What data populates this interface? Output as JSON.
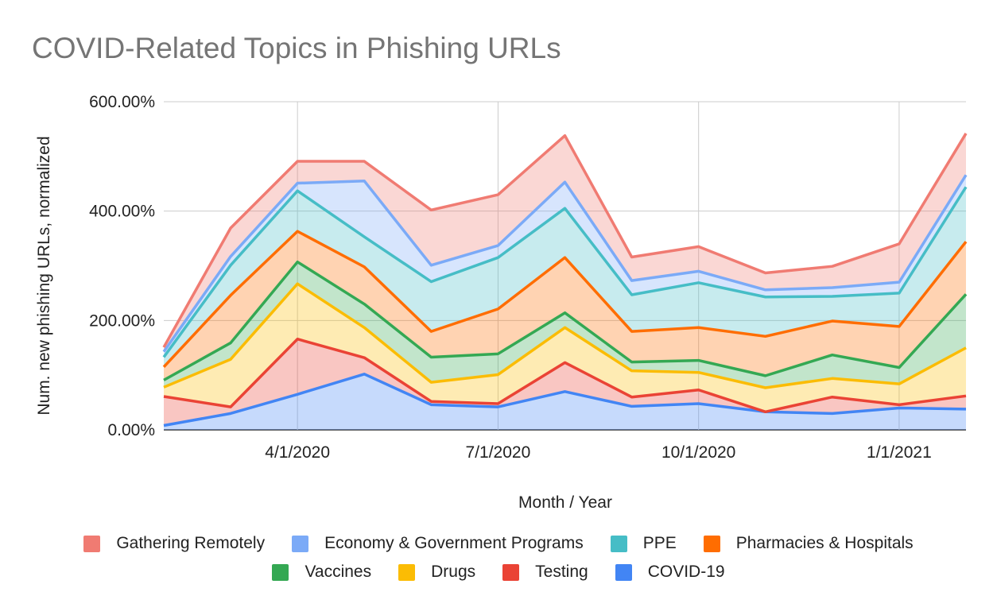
{
  "chart_data": {
    "type": "area",
    "stacked": true,
    "title": "COVID-Related Topics in Phishing URLs",
    "xlabel": "Month / Year",
    "ylabel": "Num. new phishing URLs, normalized",
    "x": [
      "2/1/2020",
      "3/1/2020",
      "4/1/2020",
      "5/1/2020",
      "6/1/2020",
      "7/1/2020",
      "8/1/2020",
      "9/1/2020",
      "10/1/2020",
      "11/1/2020",
      "12/1/2020",
      "1/1/2021",
      "2/1/2021"
    ],
    "x_tick_labels": [
      "4/1/2020",
      "7/1/2020",
      "10/1/2020",
      "1/1/2021"
    ],
    "ylim": [
      0,
      600
    ],
    "y_ticks": [
      0,
      200,
      400,
      600
    ],
    "y_tick_labels": [
      "0.00%",
      "200.00%",
      "400.00%",
      "600.00%"
    ],
    "grid": true,
    "legend_position": "bottom",
    "series": [
      {
        "name": "COVID-19",
        "color": "#4285f4",
        "values": [
          8,
          30,
          65,
          102,
          46,
          42,
          70,
          43,
          48,
          33,
          30,
          40,
          38
        ]
      },
      {
        "name": "Testing",
        "color": "#ea4335",
        "values": [
          53,
          12,
          101,
          30,
          6,
          6,
          53,
          17,
          25,
          0,
          30,
          6,
          24
        ]
      },
      {
        "name": "Drugs",
        "color": "#fbbc04",
        "values": [
          17,
          87,
          101,
          55,
          35,
          53,
          64,
          48,
          32,
          44,
          34,
          38,
          88
        ]
      },
      {
        "name": "Vaccines",
        "color": "#34a853",
        "values": [
          13,
          30,
          40,
          43,
          46,
          38,
          27,
          16,
          22,
          22,
          43,
          30,
          98
        ]
      },
      {
        "name": "Pharmacies & Hospitals",
        "color": "#ff6d01",
        "values": [
          24,
          87,
          56,
          68,
          47,
          82,
          101,
          56,
          60,
          72,
          62,
          75,
          96
        ]
      },
      {
        "name": "PPE",
        "color": "#46bdc6",
        "values": [
          18,
          55,
          74,
          55,
          91,
          94,
          90,
          67,
          82,
          72,
          45,
          61,
          100
        ]
      },
      {
        "name": "Economy & Government Programs",
        "color": "#7baaf7",
        "values": [
          10,
          16,
          14,
          102,
          30,
          22,
          48,
          26,
          21,
          13,
          16,
          20,
          22
        ]
      },
      {
        "name": "Gathering Remotely",
        "color": "#f07b72",
        "values": [
          8,
          52,
          40,
          36,
          101,
          93,
          85,
          43,
          45,
          31,
          39,
          70,
          76
        ]
      }
    ]
  }
}
